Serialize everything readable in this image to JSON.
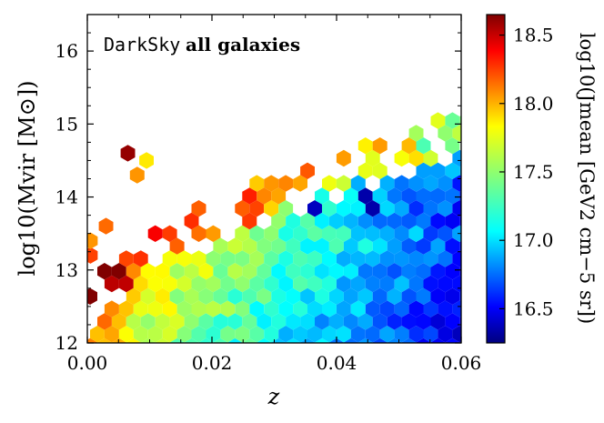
{
  "chart_data": {
    "type": "heatmap",
    "subtype": "hexbin",
    "annotation": {
      "mono": "DarkSky",
      "text": "all galaxies"
    },
    "xlabel": "z",
    "ylabel": "log10(Mvir [M⊙])",
    "xlim": [
      0.0,
      0.06
    ],
    "ylim": [
      12.0,
      16.5
    ],
    "xticks": [
      0.0,
      0.02,
      0.04,
      0.06
    ],
    "xtick_labels": [
      "0.00",
      "0.02",
      "0.04",
      "0.06"
    ],
    "yticks": [
      12,
      13,
      14,
      15,
      16
    ],
    "ytick_labels": [
      "12",
      "13",
      "14",
      "15",
      "16"
    ],
    "colorbar": {
      "label": "log10(Jmean [GeV2 cm−5 sr])",
      "range": [
        16.25,
        18.65
      ],
      "ticks": [
        16.5,
        17.0,
        17.5,
        18.0,
        18.5
      ],
      "tick_labels": [
        "16.5",
        "17.0",
        "17.5",
        "18.0",
        "18.5"
      ],
      "colormap": "jet"
    },
    "grid": false,
    "notable_cells": [
      {
        "z": 0.0005,
        "log_m": 13.2,
        "j": 18.2
      },
      {
        "z": 0.0005,
        "log_m": 13.4,
        "j": 18.0
      },
      {
        "z": 0.003,
        "log_m": 13.6,
        "j": 18.1
      },
      {
        "z": 0.0065,
        "log_m": 14.6,
        "j": 18.6
      },
      {
        "z": 0.008,
        "log_m": 14.3,
        "j": 18.0
      },
      {
        "z": 0.0095,
        "log_m": 14.5,
        "j": 17.8
      },
      {
        "z": 0.0225,
        "log_m": 15.4,
        "j": 18.2
      },
      {
        "z": 0.0205,
        "log_m": 14.8,
        "j": 18.1
      },
      {
        "z": 0.0235,
        "log_m": 15.2,
        "j": 17.7
      },
      {
        "z": 0.0495,
        "log_m": 15.4,
        "j": 17.2
      },
      {
        "z": 0.045,
        "log_m": 13.9,
        "j": 16.35
      },
      {
        "z": 0.036,
        "log_m": 13.8,
        "j": 16.4
      }
    ]
  }
}
